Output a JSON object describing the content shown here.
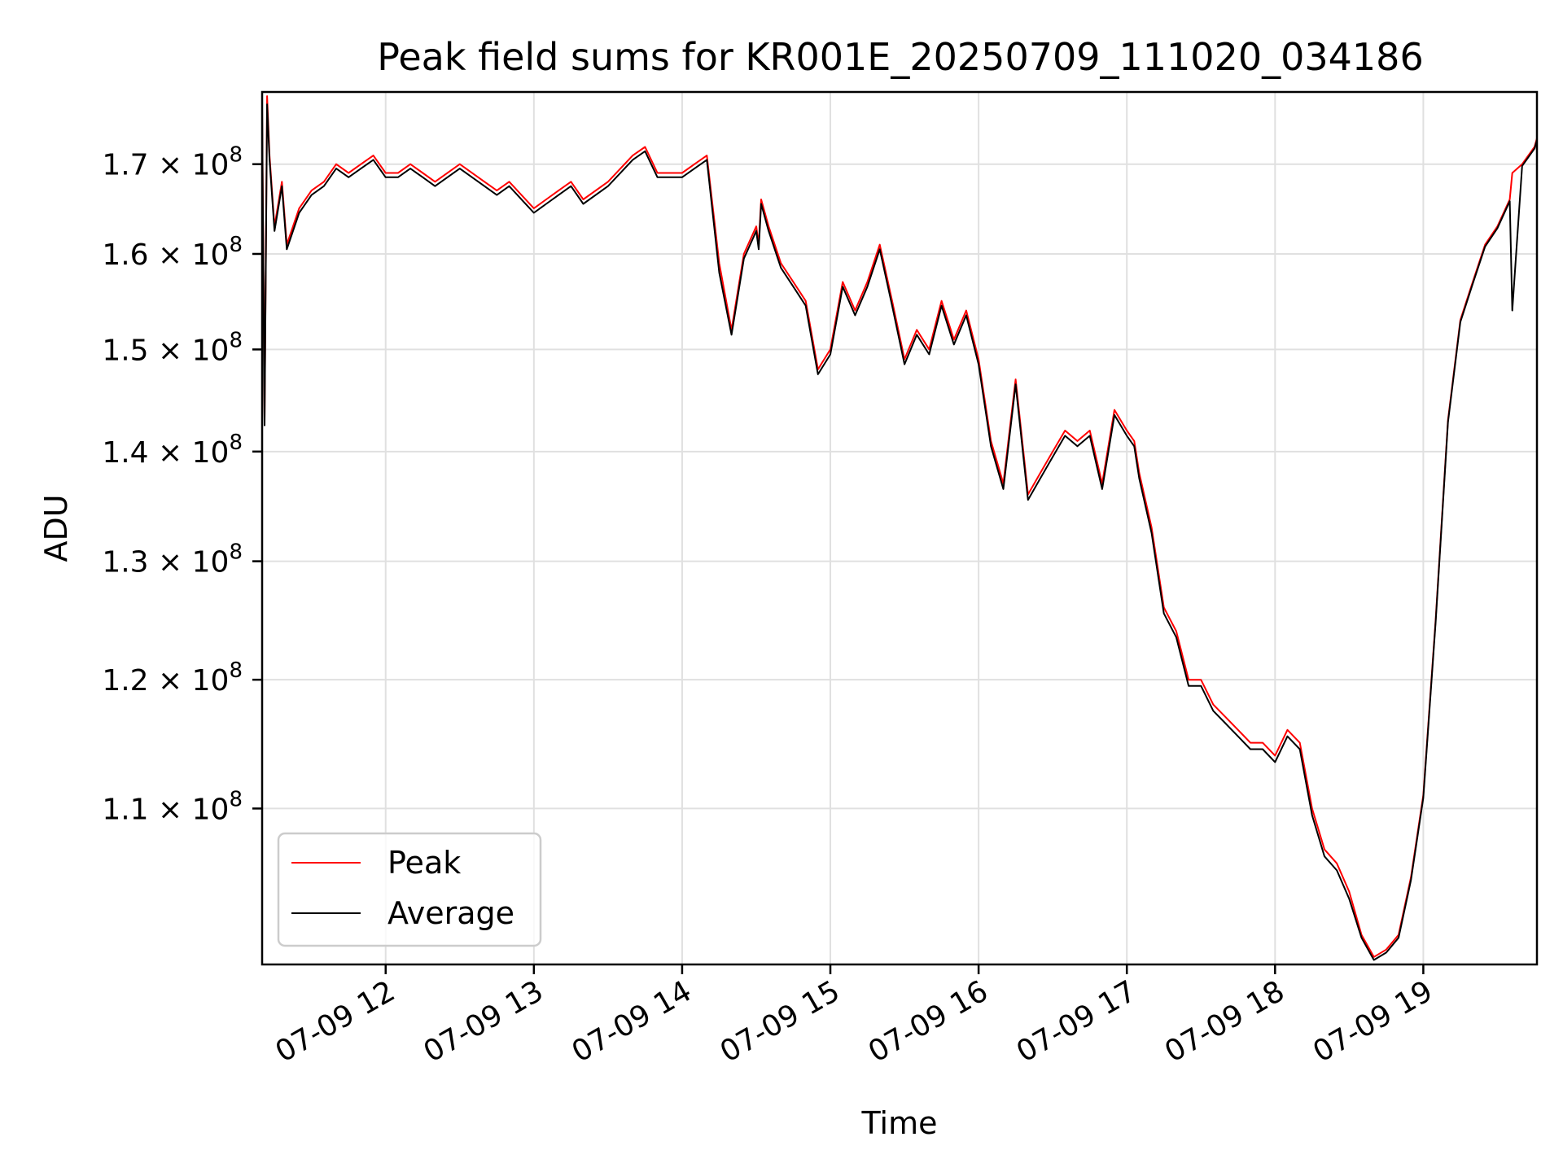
{
  "chart_data": {
    "type": "line",
    "title": "Peak field sums for KR001E_20250709_111020_034186",
    "xlabel": "Time",
    "ylabel": "ADU",
    "y_scale": "log",
    "xlim": [
      "07-09 11:10",
      "07-09 19:46"
    ],
    "ylim": [
      99000000,
      178500000
    ],
    "grid": true,
    "legend_position": "lower left",
    "x_ticks": [
      "07-09 12",
      "07-09 13",
      "07-09 14",
      "07-09 15",
      "07-09 16",
      "07-09 17",
      "07-09 18",
      "07-09 19"
    ],
    "y_ticks": [
      {
        "value": 110000000,
        "mantissa": "1.1",
        "base": "10",
        "exponent": "8"
      },
      {
        "value": 120000000,
        "mantissa": "1.2",
        "base": "10",
        "exponent": "8"
      },
      {
        "value": 130000000,
        "mantissa": "1.3",
        "base": "10",
        "exponent": "8"
      },
      {
        "value": 140000000,
        "mantissa": "1.4",
        "base": "10",
        "exponent": "8"
      },
      {
        "value": 150000000,
        "mantissa": "1.5",
        "base": "10",
        "exponent": "8"
      },
      {
        "value": 160000000,
        "mantissa": "1.6",
        "base": "10",
        "exponent": "8"
      },
      {
        "value": 170000000,
        "mantissa": "1.7",
        "base": "10",
        "exponent": "8"
      }
    ],
    "x": [
      "11:10",
      "11:11",
      "11:12",
      "11:13",
      "11:15",
      "11:18",
      "11:20",
      "11:25",
      "11:30",
      "11:35",
      "11:40",
      "11:45",
      "11:50",
      "11:55",
      "12:00",
      "12:05",
      "12:10",
      "12:15",
      "12:20",
      "12:30",
      "12:40",
      "12:45",
      "12:50",
      "13:00",
      "13:05",
      "13:10",
      "13:15",
      "13:20",
      "13:30",
      "13:40",
      "13:45",
      "13:50",
      "14:00",
      "14:05",
      "14:10",
      "14:15",
      "14:20",
      "14:25",
      "14:30",
      "14:31",
      "14:32",
      "14:35",
      "14:40",
      "14:45",
      "14:50",
      "14:55",
      "15:00",
      "15:05",
      "15:10",
      "15:15",
      "15:20",
      "15:25",
      "15:30",
      "15:35",
      "15:40",
      "15:45",
      "15:50",
      "15:55",
      "16:00",
      "16:05",
      "16:10",
      "16:15",
      "16:20",
      "16:25",
      "16:30",
      "16:35",
      "16:40",
      "16:45",
      "16:50",
      "16:55",
      "17:00",
      "17:03",
      "17:05",
      "17:10",
      "17:15",
      "17:20",
      "17:25",
      "17:30",
      "17:35",
      "17:40",
      "17:45",
      "17:50",
      "17:55",
      "18:00",
      "18:05",
      "18:10",
      "18:15",
      "18:20",
      "18:25",
      "18:30",
      "18:35",
      "18:40",
      "18:45",
      "18:50",
      "18:55",
      "19:00",
      "19:05",
      "19:10",
      "19:15",
      "19:20",
      "19:25",
      "19:30",
      "19:35",
      "19:36",
      "19:40",
      "19:45",
      "19:46"
    ],
    "series": [
      {
        "name": "Peak",
        "color": "#ff0000",
        "values": [
          177000000,
          143000000,
          178000000,
          171000000,
          163000000,
          168000000,
          161000000,
          165000000,
          167000000,
          168000000,
          170000000,
          169000000,
          170000000,
          171000000,
          169000000,
          169000000,
          170000000,
          169000000,
          168000000,
          170000000,
          168000000,
          167000000,
          168000000,
          165000000,
          166000000,
          167000000,
          168000000,
          166000000,
          168000000,
          171000000,
          172000000,
          169000000,
          169000000,
          170000000,
          171000000,
          159000000,
          152000000,
          160000000,
          163000000,
          161000000,
          166000000,
          163000000,
          159000000,
          157000000,
          155000000,
          148000000,
          150000000,
          157000000,
          154000000,
          157000000,
          161000000,
          155000000,
          149000000,
          152000000,
          150000000,
          155000000,
          151000000,
          154000000,
          149000000,
          141000000,
          137000000,
          147000000,
          136000000,
          138000000,
          140000000,
          142000000,
          141000000,
          142000000,
          137000000,
          144000000,
          142000000,
          141000000,
          138000000,
          133000000,
          126000000,
          124000000,
          120000000,
          120000000,
          118000000,
          117000000,
          116000000,
          115000000,
          115000000,
          114000000,
          116000000,
          115000000,
          110000000,
          107000000,
          106000000,
          104000000,
          101000000,
          99500000,
          100000000,
          101000000,
          105000000,
          111000000,
          125000000,
          143000000,
          153000000,
          157000000,
          161000000,
          163000000,
          166000000,
          169000000,
          170000000,
          172000000,
          173000000
        ]
      },
      {
        "name": "Average",
        "color": "#000000",
        "values": [
          176000000,
          142500000,
          177000000,
          170500000,
          162500000,
          167500000,
          160500000,
          164500000,
          166500000,
          167500000,
          169500000,
          168500000,
          169500000,
          170500000,
          168500000,
          168500000,
          169500000,
          168500000,
          167500000,
          169500000,
          167500000,
          166500000,
          167500000,
          164500000,
          165500000,
          166500000,
          167500000,
          165500000,
          167500000,
          170500000,
          171500000,
          168500000,
          168500000,
          169500000,
          170500000,
          158000000,
          151500000,
          159500000,
          162500000,
          160500000,
          165500000,
          162500000,
          158500000,
          156500000,
          154500000,
          147500000,
          149500000,
          156500000,
          153500000,
          156500000,
          160500000,
          154500000,
          148500000,
          151500000,
          149500000,
          154500000,
          150500000,
          153500000,
          148500000,
          140500000,
          136500000,
          146500000,
          135500000,
          137500000,
          139500000,
          141500000,
          140500000,
          141500000,
          136500000,
          143500000,
          141500000,
          140500000,
          137500000,
          132500000,
          125500000,
          123500000,
          119500000,
          119500000,
          117500000,
          116500000,
          115500000,
          114500000,
          114500000,
          113500000,
          115500000,
          114500000,
          109500000,
          106500000,
          105500000,
          103500000,
          100800000,
          99300000,
          99800000,
          100800000,
          104800000,
          110800000,
          124800000,
          142800000,
          152800000,
          156800000,
          160800000,
          162800000,
          165800000,
          154000000,
          169800000,
          171800000,
          172800000
        ]
      }
    ]
  }
}
